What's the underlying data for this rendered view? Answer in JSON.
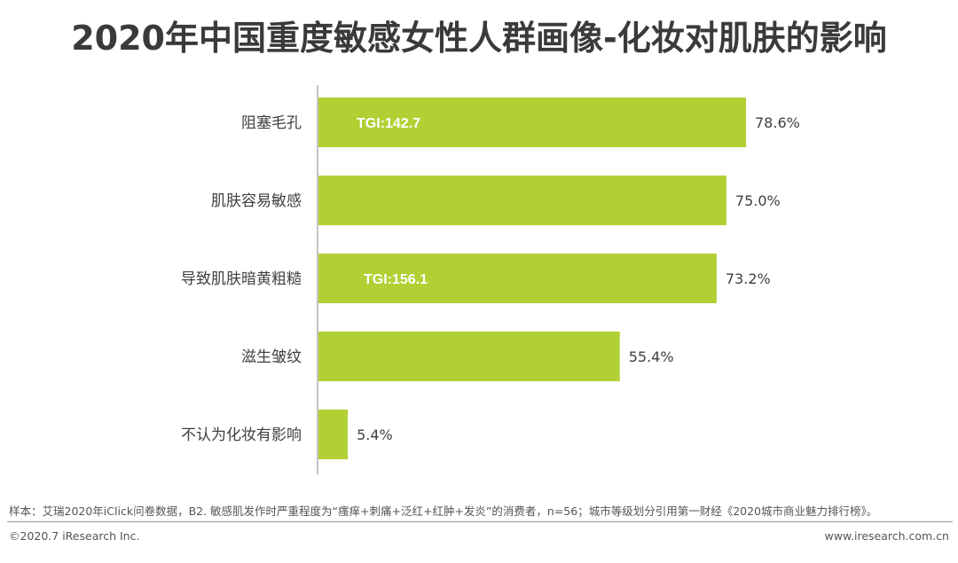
{
  "title": "2020年中国重度敏感女性人群画像-化妆对肌肤的影响",
  "footer": {
    "note": "样本：艾瑞2020年iClick问卷数据，B2. 敏感肌发作时严重程度为“瘙痒+刺痛+泛红+红肿+发炎”的消费者，n=56；城市等级划分引用第一财经《2020城市商业魅力排行榜》。",
    "copyright": "©2020.7 iResearch Inc.",
    "website": "www.iresearch.com.cn"
  },
  "colors": {
    "bar": "#b1d033",
    "axis": "#8a8a8a",
    "label": "#404040",
    "tgi_text": "#ffffff"
  },
  "chart_data": {
    "type": "bar",
    "orientation": "horizontal",
    "categories": [
      "阻塞毛孔",
      "肌肤容易敏感",
      "导致肌肤暗黄粗糙",
      "滋生皱纹",
      "不认为化妆有影响"
    ],
    "values": [
      78.6,
      75.0,
      73.2,
      55.4,
      5.4
    ],
    "value_labels": [
      "78.6%",
      "75.0%",
      "73.2%",
      "55.4%",
      "5.4%"
    ],
    "annotations": [
      {
        "category": "阻塞毛孔",
        "text": "TGI:142.7"
      },
      {
        "category": "导致肌肤暗黄粗糙",
        "text": "TGI:156.1"
      }
    ],
    "xlim": [
      0,
      100
    ],
    "grid": false,
    "legend": "none"
  }
}
